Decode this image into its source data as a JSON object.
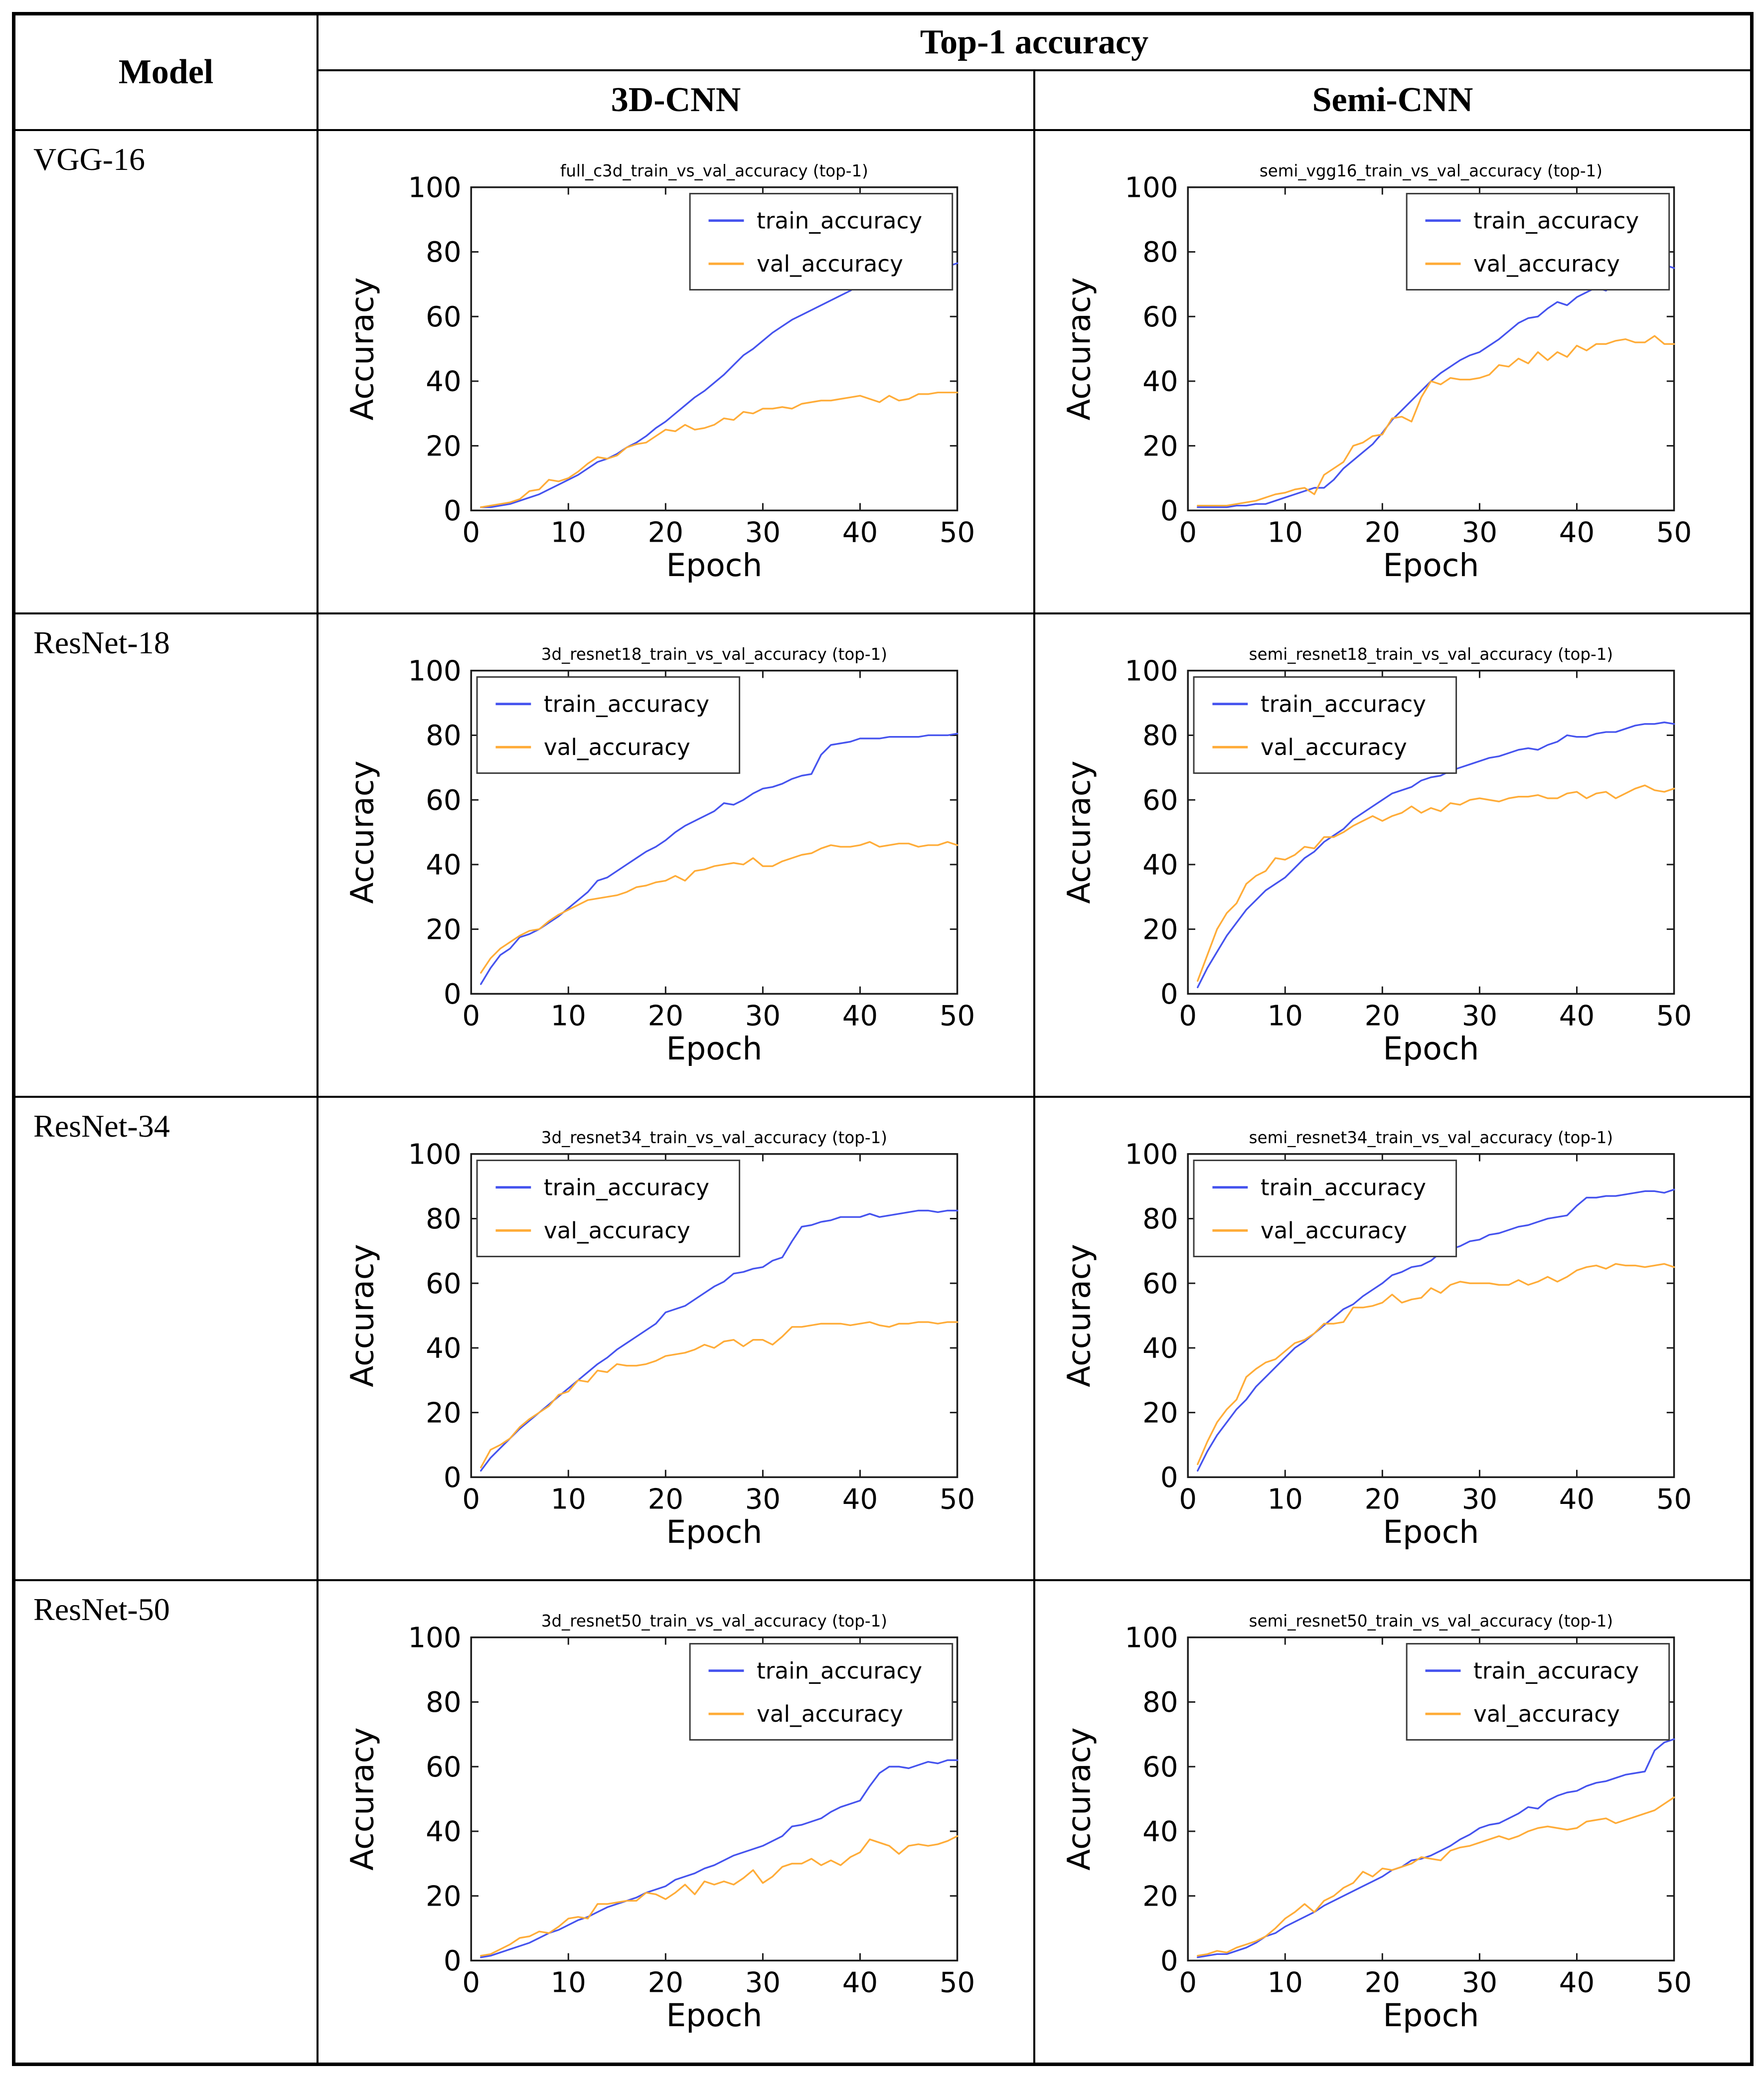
{
  "table": {
    "header": {
      "model": "Model",
      "top1": "Top-1 accuracy",
      "col_3d": "3D-CNN",
      "col_semi": "Semi-CNN"
    },
    "rows": [
      {
        "model": "VGG-16"
      },
      {
        "model": "ResNet-18"
      },
      {
        "model": "ResNet-34"
      },
      {
        "model": "ResNet-50"
      }
    ]
  },
  "axis": {
    "xlabel": "Epoch",
    "ylabel": "Accuracy",
    "xticks": [
      0,
      10,
      20,
      30,
      40,
      50
    ],
    "yticks": [
      0,
      20,
      40,
      60,
      80,
      100
    ],
    "xlim": [
      0,
      50
    ],
    "ylim": [
      0,
      100
    ],
    "grid": false
  },
  "legend": {
    "train_label": "train_accuracy",
    "val_label": "val_accuracy"
  },
  "colors": {
    "train": "#4553ee",
    "val": "#ffac38",
    "frame": "#1a1a1a",
    "legend_border": "#3a3a3a"
  },
  "chart_data": [
    {
      "type": "line",
      "model": "VGG-16",
      "column": "3D-CNN",
      "title": "full_c3d_train_vs_val_accuracy (top-1)",
      "legend_position": "right",
      "x_range": [
        1,
        50
      ],
      "series": [
        {
          "name": "train_accuracy",
          "values": [
            1,
            1,
            1.5,
            2,
            3,
            4,
            5,
            6.5,
            8,
            9.5,
            11,
            13,
            15,
            16,
            17.5,
            19.5,
            21,
            23,
            25.5,
            27.5,
            30,
            32.5,
            35,
            37,
            39.5,
            42,
            45,
            48,
            50,
            52.5,
            55,
            57,
            59,
            60.5,
            62,
            63.5,
            65,
            66.5,
            68,
            70,
            70.5,
            71,
            72,
            73.5,
            75,
            75.5,
            75.5,
            75,
            75.5,
            76.5
          ]
        },
        {
          "name": "val_accuracy",
          "values": [
            1,
            1.5,
            2,
            2.5,
            3.5,
            6,
            6.5,
            9.5,
            9,
            10,
            12,
            14.5,
            16.5,
            16,
            17,
            19.5,
            20.5,
            21,
            23,
            25,
            24.5,
            26.5,
            25,
            25.5,
            26.5,
            28.5,
            28,
            30.5,
            30,
            31.5,
            31.5,
            32,
            31.5,
            33,
            33.5,
            34,
            34,
            34.5,
            35,
            35.5,
            34.5,
            33.5,
            35.5,
            34,
            34.5,
            36,
            36,
            36.5,
            36.5,
            36.5
          ]
        }
      ]
    },
    {
      "type": "line",
      "model": "VGG-16",
      "column": "Semi-CNN",
      "title": "semi_vgg16_train_vs_val_accuracy (top-1)",
      "legend_position": "right",
      "x_range": [
        1,
        50
      ],
      "series": [
        {
          "name": "train_accuracy",
          "values": [
            1,
            1,
            1,
            1,
            1.5,
            1.5,
            2,
            2,
            3,
            4,
            5,
            6,
            7,
            7,
            9.5,
            13,
            15.5,
            18,
            20.5,
            24,
            28,
            31,
            34,
            37,
            40,
            42.5,
            44.5,
            46.5,
            48,
            49,
            51,
            53,
            55.5,
            58,
            59.5,
            60,
            62.5,
            64.5,
            63.5,
            66,
            67.5,
            69,
            68,
            71,
            73.5,
            72,
            72.5,
            75.5,
            76,
            75
          ]
        },
        {
          "name": "val_accuracy",
          "values": [
            1.5,
            1.5,
            1.5,
            1.5,
            2,
            2.5,
            3,
            4,
            5,
            5.5,
            6.5,
            7,
            5,
            11,
            13,
            15,
            20,
            21,
            23,
            23.5,
            28.5,
            29,
            27.5,
            35,
            40,
            39,
            41,
            40.5,
            40.5,
            41,
            42,
            45,
            44.5,
            47,
            45.5,
            49,
            46.5,
            49,
            47.5,
            51,
            49.5,
            51.5,
            51.5,
            52.5,
            53,
            52,
            52,
            54,
            51.5,
            51.5
          ]
        }
      ]
    },
    {
      "type": "line",
      "model": "ResNet-18",
      "column": "3D-CNN",
      "title": "3d_resnet18_train_vs_val_accuracy (top-1)",
      "legend_position": "left",
      "x_range": [
        1,
        50
      ],
      "series": [
        {
          "name": "train_accuracy",
          "values": [
            3,
            8,
            12,
            14,
            17.5,
            18.5,
            20,
            22,
            24,
            26.5,
            29,
            31.5,
            35,
            36,
            38,
            40,
            42,
            44,
            45.5,
            47.5,
            50,
            52,
            53.5,
            55,
            56.5,
            59,
            58.5,
            60,
            62,
            63.5,
            64,
            65,
            66.5,
            67.5,
            68,
            74,
            77,
            77.5,
            78,
            79,
            79,
            79,
            79.5,
            79.5,
            79.5,
            79.5,
            80,
            80,
            80,
            80.5
          ]
        },
        {
          "name": "val_accuracy",
          "values": [
            6.5,
            11,
            14,
            16,
            18,
            19.5,
            20,
            22.5,
            24.5,
            26,
            27.5,
            29,
            29.5,
            30,
            30.5,
            31.5,
            33,
            33.5,
            34.5,
            35,
            36.5,
            35,
            38,
            38.5,
            39.5,
            40,
            40.5,
            40,
            42,
            39.5,
            39.5,
            41,
            42,
            43,
            43.5,
            45,
            46,
            45.5,
            45.5,
            46,
            47,
            45.5,
            46,
            46.5,
            46.5,
            45.5,
            46,
            46,
            47,
            46
          ]
        }
      ]
    },
    {
      "type": "line",
      "model": "ResNet-18",
      "column": "Semi-CNN",
      "title": "semi_resnet18_train_vs_val_accuracy (top-1)",
      "legend_position": "left",
      "x_range": [
        1,
        50
      ],
      "series": [
        {
          "name": "train_accuracy",
          "values": [
            2,
            8,
            13,
            18,
            22,
            26,
            29,
            32,
            34,
            36,
            39,
            42,
            44,
            47,
            49,
            51,
            54,
            56,
            58,
            60,
            62,
            63,
            64,
            66,
            67,
            67.5,
            69,
            70,
            71,
            72,
            73,
            73.5,
            74.5,
            75.5,
            76,
            75.5,
            77,
            78,
            80,
            79.5,
            79.5,
            80.5,
            81,
            81,
            82,
            83,
            83.5,
            83.5,
            84,
            83.5
          ]
        },
        {
          "name": "val_accuracy",
          "values": [
            4,
            12,
            20,
            25,
            28,
            34,
            36.5,
            38,
            42,
            41.5,
            43,
            45.5,
            45,
            48.5,
            48.5,
            50,
            52,
            53.5,
            55,
            53.5,
            55,
            56,
            58,
            56,
            57.5,
            56.5,
            59,
            58.5,
            60,
            60.5,
            60,
            59.5,
            60.5,
            61,
            61,
            61.5,
            60.5,
            60.5,
            62,
            62.5,
            60.5,
            62,
            62.5,
            60.5,
            62,
            63.5,
            64.5,
            63,
            62.5,
            63.5
          ]
        }
      ]
    },
    {
      "type": "line",
      "model": "ResNet-34",
      "column": "3D-CNN",
      "title": "3d_resnet34_train_vs_val_accuracy (top-1)",
      "legend_position": "left",
      "x_range": [
        1,
        50
      ],
      "series": [
        {
          "name": "train_accuracy",
          "values": [
            2,
            6,
            9,
            12,
            15,
            17.5,
            20,
            22.5,
            25,
            27.5,
            30,
            32.5,
            35,
            37,
            39.5,
            41.5,
            43.5,
            45.5,
            47.5,
            51,
            52,
            53,
            55,
            57,
            59,
            60.5,
            63,
            63.5,
            64.5,
            65,
            67,
            68,
            73,
            77.5,
            78,
            79,
            79.5,
            80.5,
            80.5,
            80.5,
            81.5,
            80.5,
            81,
            81.5,
            82,
            82.5,
            82.5,
            82,
            82.5,
            82.5
          ]
        },
        {
          "name": "val_accuracy",
          "values": [
            3,
            8.5,
            10,
            12,
            15.5,
            18,
            20,
            22,
            25.5,
            26.5,
            30,
            29.5,
            33,
            32.5,
            35,
            34.5,
            34.5,
            35,
            36,
            37.5,
            38,
            38.5,
            39.5,
            41,
            40,
            42,
            42.5,
            40.5,
            42.5,
            42.5,
            41,
            43.5,
            46.5,
            46.5,
            47,
            47.5,
            47.5,
            47.5,
            47,
            47.5,
            48,
            47,
            46.5,
            47.5,
            47.5,
            48,
            48,
            47.5,
            48,
            48
          ]
        }
      ]
    },
    {
      "type": "line",
      "model": "ResNet-34",
      "column": "Semi-CNN",
      "title": "semi_resnet34_train_vs_val_accuracy (top-1)",
      "legend_position": "left",
      "x_range": [
        1,
        50
      ],
      "series": [
        {
          "name": "train_accuracy",
          "values": [
            2,
            8,
            13,
            17,
            21,
            24,
            28,
            31,
            34,
            37,
            40,
            42,
            44.5,
            47,
            49.5,
            52,
            53.5,
            56,
            58,
            60,
            62.5,
            63.5,
            65,
            65.5,
            67,
            69.5,
            70.5,
            71.5,
            73,
            73.5,
            75,
            75.5,
            76.5,
            77.5,
            78,
            79,
            80,
            80.5,
            81,
            84,
            86.5,
            86.5,
            87,
            87,
            87.5,
            88,
            88.5,
            88.5,
            88,
            89
          ]
        },
        {
          "name": "val_accuracy",
          "values": [
            4,
            11,
            17,
            21,
            24,
            31,
            33.5,
            35.5,
            36.5,
            39,
            41.5,
            42.5,
            44.5,
            47.5,
            47.5,
            48,
            52.5,
            52.5,
            53,
            54,
            56.5,
            54,
            55,
            55.5,
            58.5,
            57,
            59.5,
            60.5,
            60,
            60,
            60,
            59.5,
            59.5,
            61,
            59.5,
            60.5,
            62,
            60.5,
            62,
            64,
            65,
            65.5,
            64.5,
            66,
            65.5,
            65.5,
            65,
            65.5,
            66,
            65
          ]
        }
      ]
    },
    {
      "type": "line",
      "model": "ResNet-50",
      "column": "3D-CNN",
      "title": "3d_resnet50_train_vs_val_accuracy (top-1)",
      "legend_position": "right",
      "x_range": [
        1,
        50
      ],
      "series": [
        {
          "name": "train_accuracy",
          "values": [
            1,
            1.5,
            2.5,
            3.5,
            4.5,
            5.5,
            7,
            8.5,
            9.5,
            11,
            12.5,
            13.5,
            15,
            16.5,
            17.5,
            18.5,
            19.5,
            21,
            22,
            23,
            25,
            26,
            27,
            28.5,
            29.5,
            31,
            32.5,
            33.5,
            34.5,
            35.5,
            37,
            38.5,
            41.5,
            42,
            43,
            44,
            46,
            47.5,
            48.5,
            49.5,
            54,
            58,
            60,
            60,
            59.5,
            60.5,
            61.5,
            61,
            62,
            62
          ]
        },
        {
          "name": "val_accuracy",
          "values": [
            1.5,
            2,
            3.5,
            5,
            7,
            7.5,
            9,
            8.5,
            10.5,
            13,
            13.5,
            13,
            17.5,
            17.5,
            18,
            18.5,
            18.5,
            21,
            20.5,
            19,
            21,
            23.5,
            20.5,
            24.5,
            23.5,
            24.5,
            23.5,
            25.5,
            28,
            24,
            26,
            29,
            30,
            30,
            31.5,
            29.5,
            31,
            29.5,
            32,
            33.5,
            37.5,
            36.5,
            35.5,
            33,
            35.5,
            36,
            35.5,
            36,
            37,
            38.5
          ]
        }
      ]
    },
    {
      "type": "line",
      "model": "ResNet-50",
      "column": "Semi-CNN",
      "title": "semi_resnet50_train_vs_val_accuracy (top-1)",
      "legend_position": "right",
      "x_range": [
        1,
        50
      ],
      "series": [
        {
          "name": "train_accuracy",
          "values": [
            1,
            1.5,
            2,
            2,
            3,
            4,
            5.5,
            7.5,
            8.5,
            10.5,
            12,
            13.5,
            15,
            17,
            18.5,
            20,
            21.5,
            23,
            24.5,
            26,
            28,
            29,
            31,
            31.5,
            32.5,
            34,
            35.5,
            37.5,
            39,
            41,
            42,
            42.5,
            44,
            45.5,
            47.5,
            47,
            49.5,
            51,
            52,
            52.5,
            54,
            55,
            55.5,
            56.5,
            57.5,
            58,
            58.5,
            65,
            67.5,
            68.5
          ]
        },
        {
          "name": "val_accuracy",
          "values": [
            1.5,
            2,
            3,
            2.5,
            4,
            5,
            6,
            7.5,
            10,
            13,
            15,
            17.5,
            15,
            18.5,
            20,
            22.5,
            24,
            27.5,
            26,
            28.5,
            28,
            29,
            30,
            32,
            31.5,
            31,
            34,
            35,
            35.5,
            36.5,
            37.5,
            38.5,
            37.5,
            38.5,
            40,
            41,
            41.5,
            41,
            40.5,
            41,
            43,
            43.5,
            44,
            42.5,
            43.5,
            44.5,
            45.5,
            46.5,
            48.5,
            50.5
          ]
        }
      ]
    }
  ]
}
